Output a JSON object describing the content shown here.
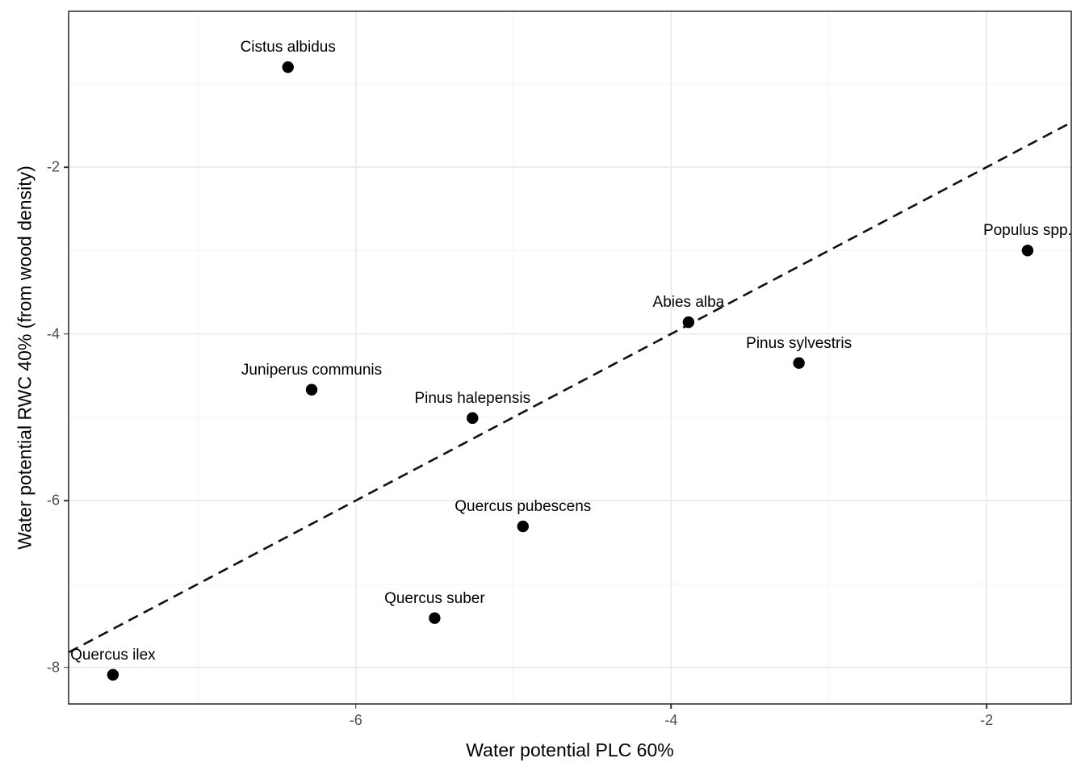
{
  "chart_data": {
    "type": "scatter",
    "title": "",
    "xlabel": "Water potential PLC 60%",
    "ylabel": "Water potential RWC 40% (from wood density)",
    "xlim": [
      -7.821,
      -1.463
    ],
    "ylim": [
      -8.44,
      -0.13
    ],
    "x_ticks": [
      -6,
      -4,
      -2
    ],
    "y_ticks": [
      -2,
      -4,
      -6,
      -8
    ],
    "x_minor_ticks": [
      -7,
      -5,
      -3
    ],
    "y_minor_ticks": [
      -1,
      -3,
      -5,
      -7
    ],
    "grid": true,
    "legend": false,
    "points": [
      {
        "label": "Quercus ilex",
        "x": -7.54,
        "y": -8.09
      },
      {
        "label": "Cistus albidus",
        "x": -6.43,
        "y": -0.8
      },
      {
        "label": "Juniperus communis",
        "x": -6.28,
        "y": -4.67
      },
      {
        "label": "Quercus suber",
        "x": -5.5,
        "y": -7.41
      },
      {
        "label": "Pinus halepensis",
        "x": -5.26,
        "y": -5.01
      },
      {
        "label": "Quercus pubescens",
        "x": -4.94,
        "y": -6.31
      },
      {
        "label": "Abies alba",
        "x": -3.89,
        "y": -3.86
      },
      {
        "label": "Pinus sylvestris",
        "x": -3.19,
        "y": -4.35
      },
      {
        "label": "Populus spp.",
        "x": -1.74,
        "y": -3.0
      }
    ],
    "reference_line": {
      "slope": 1,
      "intercept": 0,
      "style": "dashed",
      "description": "1:1 identity line"
    },
    "colors": {
      "point": "#000000",
      "point_label": "#000000",
      "reference_line": "#111111",
      "grid_major": "#e8e8e8",
      "grid_minor": "#f2f2f2",
      "panel_border": "#333333",
      "panel_background": "#ffffff",
      "axis_text": "#4d4d4d",
      "axis_title": "#000000",
      "tick_mark": "#333333"
    }
  }
}
